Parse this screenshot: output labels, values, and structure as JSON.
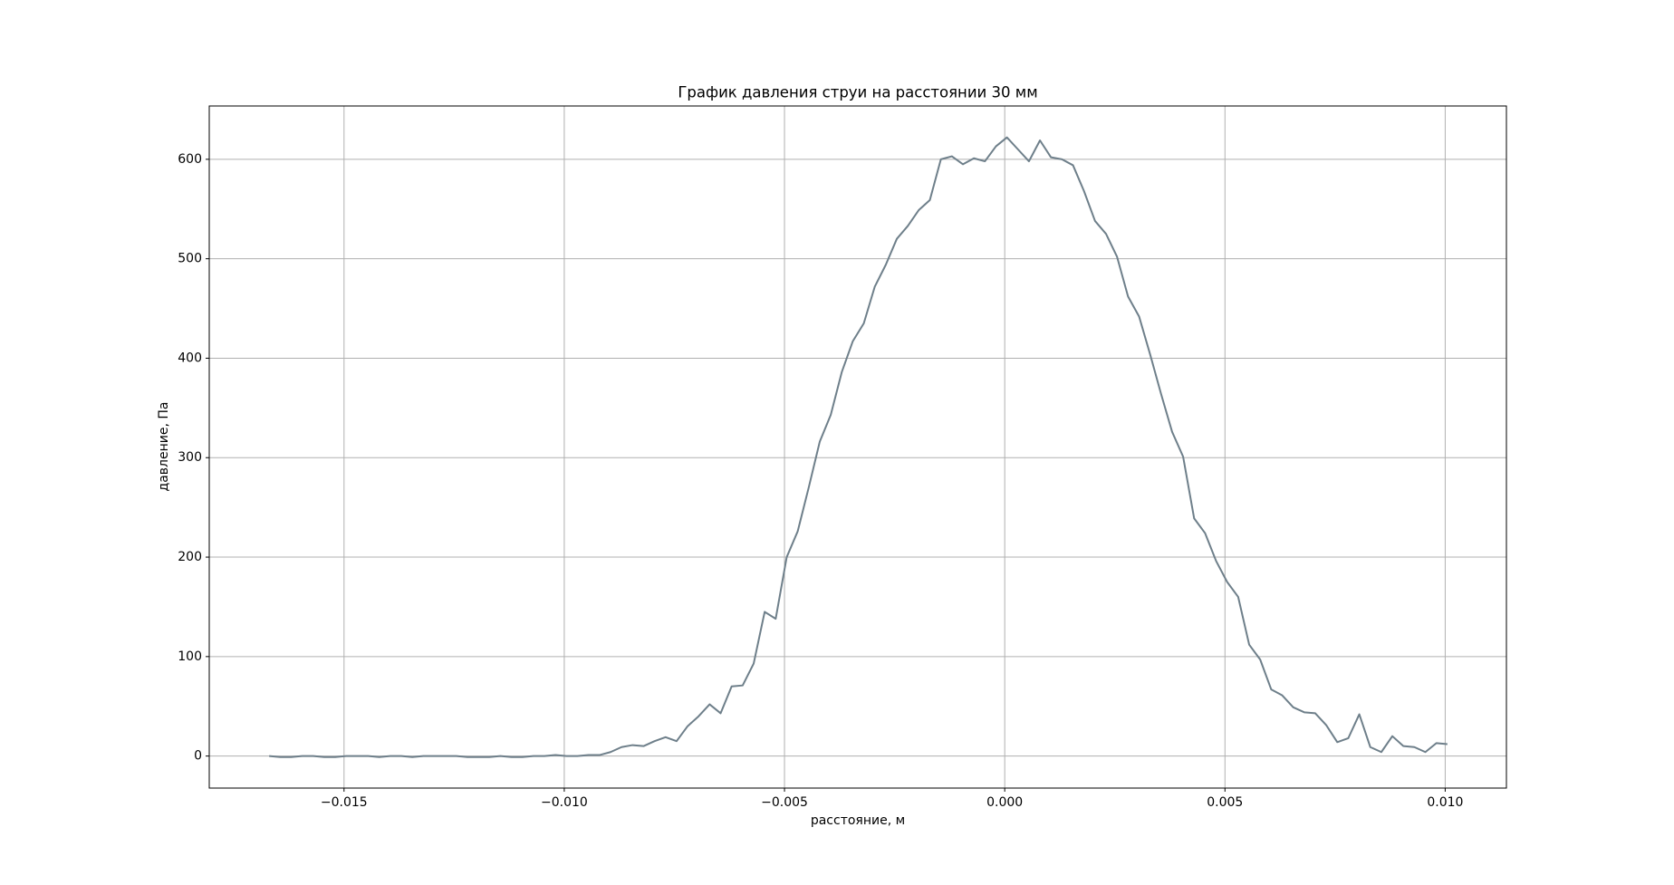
{
  "chart_data": {
    "type": "line",
    "title": "График давления струи на расстоянии 30 мм",
    "xlabel": "расстояние, м",
    "ylabel": "давление, Па",
    "x": [
      -0.0167,
      -0.01645,
      -0.0162,
      -0.01595,
      -0.0157,
      -0.01545,
      -0.0152,
      -0.01495,
      -0.0147,
      -0.01445,
      -0.0142,
      -0.01395,
      -0.0137,
      -0.01345,
      -0.0132,
      -0.01295,
      -0.0127,
      -0.01245,
      -0.0122,
      -0.01195,
      -0.0117,
      -0.01145,
      -0.0112,
      -0.01095,
      -0.0107,
      -0.01045,
      -0.0102,
      -0.00995,
      -0.0097,
      -0.00945,
      -0.0092,
      -0.00895,
      -0.0087,
      -0.00845,
      -0.0082,
      -0.00795,
      -0.0077,
      -0.00745,
      -0.0072,
      -0.00695,
      -0.0067,
      -0.00645,
      -0.0062,
      -0.00595,
      -0.0057,
      -0.00545,
      -0.0052,
      -0.00495,
      -0.0047,
      -0.00445,
      -0.0042,
      -0.00395,
      -0.0037,
      -0.00345,
      -0.0032,
      -0.00295,
      -0.0027,
      -0.00245,
      -0.0022,
      -0.00195,
      -0.0017,
      -0.00145,
      -0.0012,
      -0.00095,
      -0.0007,
      -0.00045,
      -0.0002,
      5e-05,
      0.0003,
      0.00055,
      0.0008,
      0.00105,
      0.0013,
      0.00155,
      0.0018,
      0.00205,
      0.0023,
      0.00255,
      0.0028,
      0.00305,
      0.0033,
      0.00355,
      0.0038,
      0.00405,
      0.0043,
      0.00455,
      0.0048,
      0.00505,
      0.0053,
      0.00555,
      0.0058,
      0.00605,
      0.0063,
      0.00655,
      0.0068,
      0.00705,
      0.0073,
      0.00755,
      0.0078,
      0.00805,
      0.0083,
      0.00855,
      0.0088,
      0.00905,
      0.0093,
      0.00955,
      0.0098,
      0.01005
    ],
    "series": [
      {
        "color": "#6e7f8a",
        "values": [
          0,
          -1,
          -1,
          0,
          0,
          -1,
          -1,
          0,
          0,
          0,
          -1,
          0,
          0,
          -1,
          0,
          0,
          0,
          0,
          -1,
          -1,
          -1,
          0,
          -1,
          -1,
          0,
          0,
          1,
          0,
          0,
          1,
          1,
          4,
          9,
          11,
          10,
          15,
          19,
          15,
          30,
          40,
          52,
          43,
          70,
          71,
          93,
          145,
          138,
          200,
          226,
          270,
          316,
          343,
          386,
          417,
          435,
          472,
          494,
          520,
          533,
          549,
          559,
          600,
          603,
          595,
          601,
          598,
          613,
          622,
          610,
          598,
          619,
          602,
          600,
          594,
          568,
          538,
          525,
          502,
          462,
          442,
          404,
          364,
          326,
          301,
          239,
          224,
          196,
          175,
          160,
          112,
          97,
          67,
          61,
          49,
          44,
          43,
          31,
          14,
          18,
          42,
          9,
          4,
          20,
          10,
          9,
          4,
          13,
          12
        ]
      }
    ],
    "xlim": [
      -0.01806,
      0.01139
    ],
    "ylim": [
      -32.2,
      653.6
    ],
    "xticks": [
      {
        "value": -0.015,
        "label": "−0.015"
      },
      {
        "value": -0.01,
        "label": "−0.010"
      },
      {
        "value": -0.005,
        "label": "−0.005"
      },
      {
        "value": 0,
        "label": "0.000"
      },
      {
        "value": 0.005,
        "label": "0.005"
      },
      {
        "value": 0.01,
        "label": "0.010"
      }
    ],
    "yticks": [
      0,
      100,
      200,
      300,
      400,
      500,
      600
    ],
    "grid": true
  }
}
